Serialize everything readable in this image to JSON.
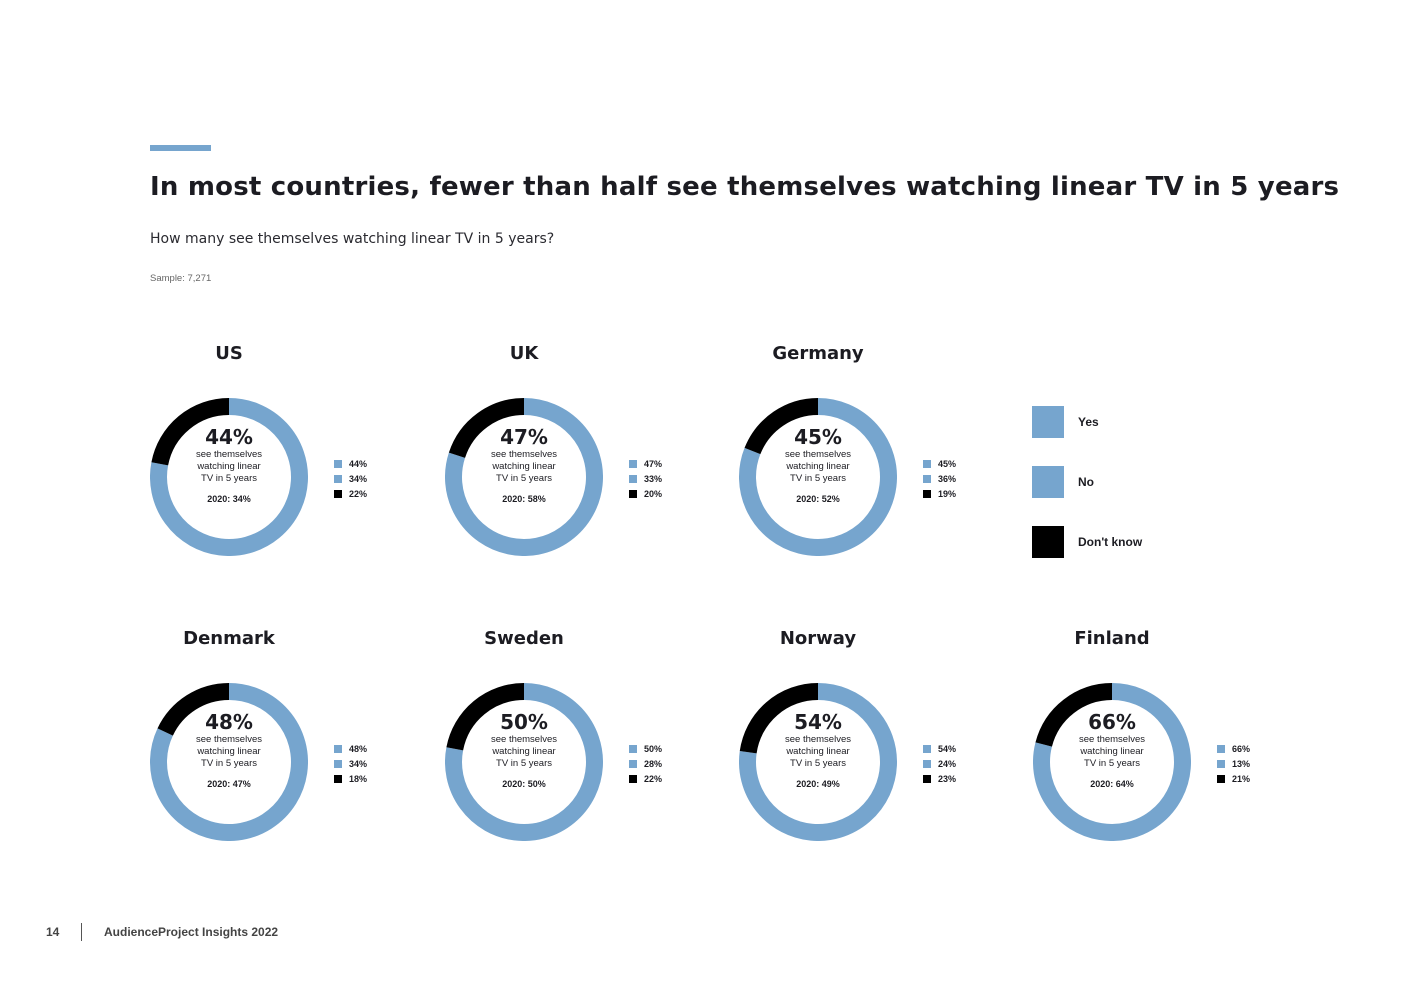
{
  "page": {
    "title": "In most countries, fewer than half see themselves watching linear TV in 5 years",
    "subtitle": "How many see themselves watching linear TV in 5 years?",
    "sample": "Sample: 7,271",
    "accent_color": "#76a5ce",
    "footer": {
      "page_number": "14",
      "publication": "AudienceProject Insights 2022"
    }
  },
  "chart_data": {
    "type": "donut",
    "center_caption": "see themselves watching linear TV in 5 years",
    "legend": [
      {
        "label": "Yes",
        "color": "#76a5ce"
      },
      {
        "label": "No",
        "color": "#76a5ce"
      },
      {
        "label": "Don't know",
        "color": "#000000"
      }
    ],
    "countries": [
      {
        "name": "US",
        "yes": 44,
        "no": 34,
        "dont_know": 22,
        "prev": "2020: 34%"
      },
      {
        "name": "UK",
        "yes": 47,
        "no": 33,
        "dont_know": 20,
        "prev": "2020: 58%"
      },
      {
        "name": "Germany",
        "yes": 45,
        "no": 36,
        "dont_know": 19,
        "prev": "2020: 52%"
      },
      {
        "name": "Denmark",
        "yes": 48,
        "no": 34,
        "dont_know": 18,
        "prev": "2020: 47%"
      },
      {
        "name": "Sweden",
        "yes": 50,
        "no": 28,
        "dont_know": 22,
        "prev": "2020: 50%"
      },
      {
        "name": "Norway",
        "yes": 54,
        "no": 24,
        "dont_know": 23,
        "prev": "2020: 49%"
      },
      {
        "name": "Finland",
        "yes": 66,
        "no": 13,
        "dont_know": 21,
        "prev": "2020: 64%"
      }
    ]
  }
}
